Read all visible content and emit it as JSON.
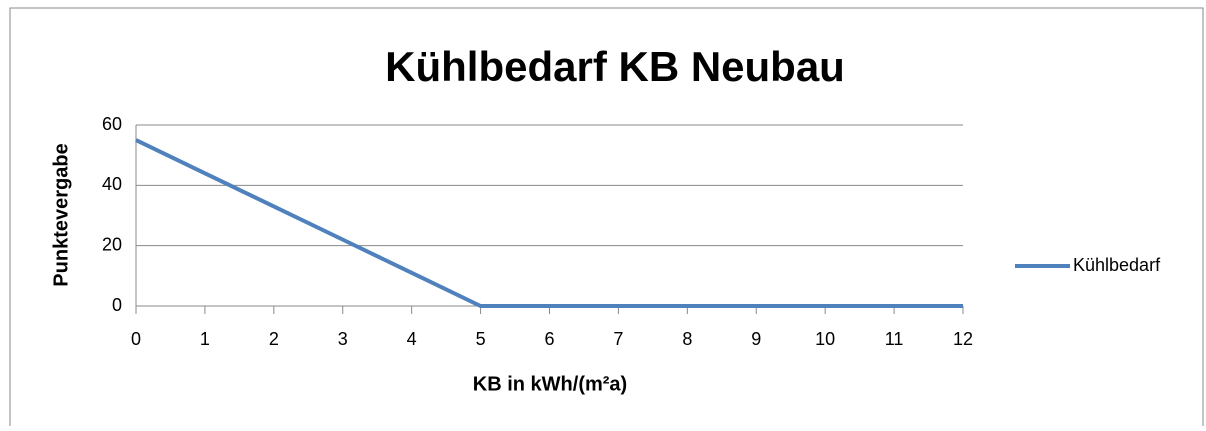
{
  "chart_data": {
    "type": "line",
    "title": "Kühlbedarf KB Neubau",
    "x_label": "KB in kWh/(m²a)",
    "y_label": "Punktevergabe",
    "x": [
      0,
      1,
      2,
      3,
      4,
      5,
      6,
      7,
      8,
      9,
      10,
      11,
      12
    ],
    "series": [
      {
        "name": "Kühlbedarf",
        "color": "#4f81bd",
        "values": [
          55,
          44,
          33,
          22,
          11,
          0,
          0,
          0,
          0,
          0,
          0,
          0,
          0
        ]
      }
    ],
    "xlim": [
      0,
      12
    ],
    "xticks": [
      0,
      1,
      2,
      3,
      4,
      5,
      6,
      7,
      8,
      9,
      10,
      11,
      12
    ],
    "ylim": [
      0,
      60
    ],
    "yticks": [
      0,
      20,
      40,
      60
    ],
    "grid": true,
    "legend": "right"
  }
}
